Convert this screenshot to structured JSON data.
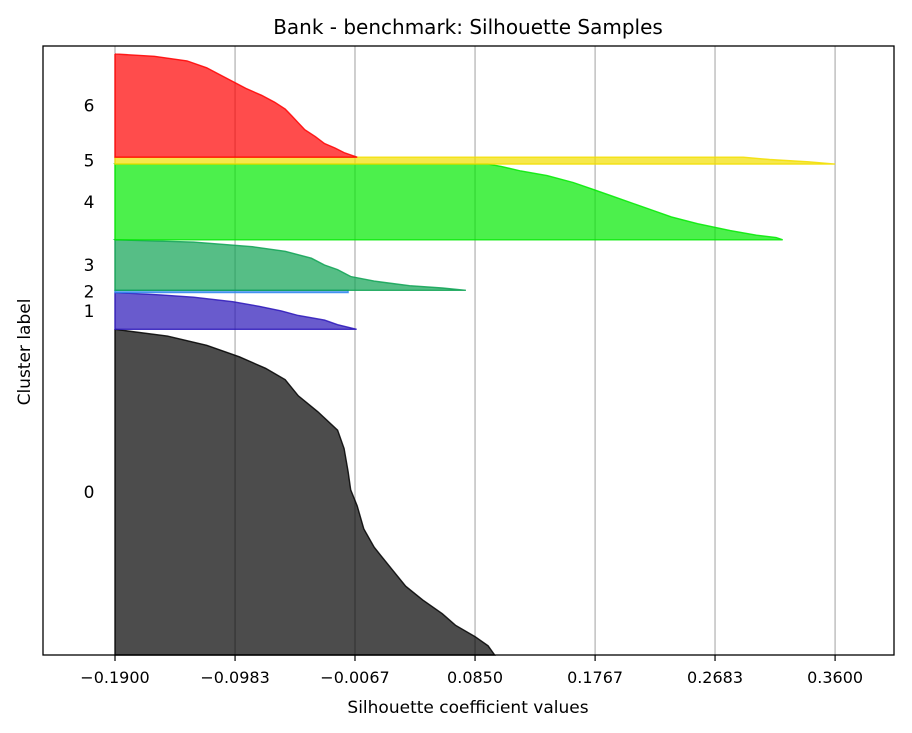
{
  "chart_data": {
    "type": "area",
    "title": "Bank - benchmark: Silhouette Samples",
    "xlabel": "Silhouette coefficient values",
    "ylabel": "Cluster label",
    "xlim": [
      -0.245,
      0.405
    ],
    "xticks": [
      "−0.1900",
      "−0.0983",
      "−0.0067",
      "0.0850",
      "0.1767",
      "0.2683",
      "0.3600"
    ],
    "xtick_values": [
      -0.19,
      -0.0983,
      -0.0067,
      0.085,
      0.1767,
      0.2683,
      0.36
    ],
    "grid": "vertical",
    "baseline": -0.19,
    "clusters": [
      {
        "label": "0",
        "color": "#000000",
        "start": 0,
        "end": 142,
        "profile": [
          [
            0,
            0.1
          ],
          [
            4,
            0.095
          ],
          [
            8,
            0.085
          ],
          [
            13,
            0.07
          ],
          [
            18,
            0.06
          ],
          [
            24,
            0.045
          ],
          [
            30,
            0.032
          ],
          [
            37,
            0.022
          ],
          [
            42,
            0.015
          ],
          [
            47,
            0.008
          ],
          [
            55,
            0.0
          ],
          [
            65,
            -0.005
          ],
          [
            72,
            -0.01
          ],
          [
            80,
            -0.012
          ],
          [
            90,
            -0.015
          ],
          [
            98,
            -0.02
          ],
          [
            106,
            -0.035
          ],
          [
            113,
            -0.05
          ],
          [
            120,
            -0.06
          ],
          [
            125,
            -0.075
          ],
          [
            130,
            -0.095
          ],
          [
            135,
            -0.12
          ],
          [
            139,
            -0.15
          ],
          [
            142,
            -0.19
          ]
        ]
      },
      {
        "label": "1",
        "color": "#2a15b8",
        "start": 142,
        "end": 158,
        "profile": [
          [
            0,
            -0.0055
          ],
          [
            2,
            -0.02
          ],
          [
            4,
            -0.03
          ],
          [
            6,
            -0.05
          ],
          [
            8,
            -0.063
          ],
          [
            10,
            -0.08
          ],
          [
            12,
            -0.1
          ],
          [
            14,
            -0.13
          ],
          [
            15,
            -0.155
          ],
          [
            16,
            -0.19
          ]
        ]
      },
      {
        "label": "2",
        "color": "#3388ee",
        "start": 158,
        "end": 159,
        "profile": [
          [
            0,
            -0.012
          ],
          [
            1,
            -0.012
          ]
        ]
      },
      {
        "label": "3",
        "color": "#0ea253",
        "start": 159,
        "end": 181,
        "profile": [
          [
            0,
            0.078
          ],
          [
            1,
            0.06
          ],
          [
            2,
            0.035
          ],
          [
            4,
            0.008
          ],
          [
            6,
            -0.01
          ],
          [
            9,
            -0.02
          ],
          [
            11,
            -0.03
          ],
          [
            14,
            -0.04
          ],
          [
            17,
            -0.06
          ],
          [
            19,
            -0.085
          ],
          [
            21,
            -0.13
          ],
          [
            22,
            -0.19
          ]
        ]
      },
      {
        "label": "4",
        "color": "#00ea00",
        "start": 181,
        "end": 214,
        "profile": [
          [
            0,
            0.32
          ],
          [
            1,
            0.315
          ],
          [
            2,
            0.3
          ],
          [
            4,
            0.28
          ],
          [
            7,
            0.255
          ],
          [
            10,
            0.235
          ],
          [
            13,
            0.22
          ],
          [
            16,
            0.205
          ],
          [
            19,
            0.19
          ],
          [
            22,
            0.175
          ],
          [
            25,
            0.16
          ],
          [
            28,
            0.14
          ],
          [
            30,
            0.12
          ],
          [
            32,
            0.105
          ],
          [
            33,
            0.095
          ],
          [
            33,
            -0.19
          ]
        ]
      },
      {
        "label": "5",
        "color": "#f2de00",
        "start": 214,
        "end": 217,
        "profile": [
          [
            0,
            0.36
          ],
          [
            1,
            0.34
          ],
          [
            2,
            0.31
          ],
          [
            3,
            0.29
          ]
        ]
      },
      {
        "label": "6",
        "color": "#ff0000",
        "start": 217,
        "end": 262,
        "profile": [
          [
            0,
            -0.005
          ],
          [
            2,
            -0.015
          ],
          [
            4,
            -0.022
          ],
          [
            6,
            -0.03
          ],
          [
            9,
            -0.037
          ],
          [
            12,
            -0.045
          ],
          [
            15,
            -0.05
          ],
          [
            18,
            -0.055
          ],
          [
            21,
            -0.06
          ],
          [
            24,
            -0.068
          ],
          [
            27,
            -0.078
          ],
          [
            30,
            -0.09
          ],
          [
            33,
            -0.1
          ],
          [
            36,
            -0.11
          ],
          [
            39,
            -0.12
          ],
          [
            42,
            -0.135
          ],
          [
            44,
            -0.16
          ],
          [
            45,
            -0.19
          ]
        ]
      }
    ],
    "total_rows": 262
  }
}
